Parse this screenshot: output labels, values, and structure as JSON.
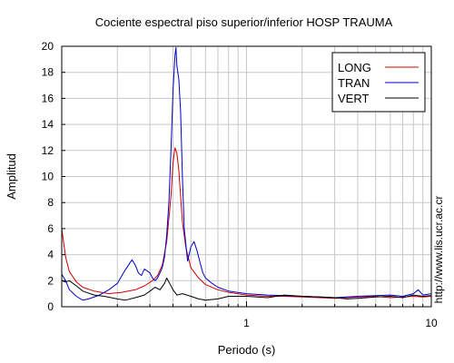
{
  "chart_data": {
    "type": "line",
    "title": "Cociente espectral piso superior/inferior  HOSP TRAUMA",
    "xlabel": "Periodo (s)",
    "ylabel": "Amplitud",
    "x_scale": "log",
    "xlim": [
      0.1,
      10
    ],
    "ylim": [
      0,
      20
    ],
    "x_ticks": [
      1,
      10
    ],
    "x_tick_labels": [
      "1",
      "10"
    ],
    "y_ticks": [
      0,
      2,
      4,
      6,
      8,
      10,
      12,
      14,
      16,
      18,
      20
    ],
    "y_tick_labels": [
      "0",
      "2",
      "4",
      "6",
      "8",
      "10",
      "12",
      "14",
      "16",
      "18",
      "20"
    ],
    "grid": true,
    "legend_position": "top-right",
    "side_note": "http://www.lis.ucr.ac.cr",
    "series": [
      {
        "name": "LONG",
        "color": "#d00000",
        "x": [
          0.1,
          0.105,
          0.11,
          0.12,
          0.13,
          0.15,
          0.18,
          0.21,
          0.25,
          0.28,
          0.31,
          0.33,
          0.35,
          0.37,
          0.39,
          0.4,
          0.41,
          0.42,
          0.43,
          0.44,
          0.45,
          0.47,
          0.5,
          0.55,
          0.6,
          0.7,
          0.8,
          1.0,
          1.3,
          1.6,
          2.0,
          2.5,
          3.0,
          3.5,
          4.0,
          5.0,
          6.0,
          7.0,
          8.0,
          9.0,
          10.0
        ],
        "y": [
          6.0,
          3.8,
          2.7,
          1.9,
          1.5,
          1.2,
          1.0,
          1.1,
          1.3,
          1.6,
          2.0,
          2.4,
          3.2,
          5.0,
          8.5,
          11.0,
          12.2,
          11.8,
          10.5,
          8.5,
          6.5,
          4.5,
          3.0,
          2.2,
          1.7,
          1.3,
          1.1,
          0.9,
          0.8,
          0.8,
          0.75,
          0.7,
          0.65,
          0.7,
          0.75,
          0.8,
          0.7,
          0.75,
          0.8,
          0.75,
          0.8
        ]
      },
      {
        "name": "TRAN",
        "color": "#0000cc",
        "x": [
          0.1,
          0.105,
          0.11,
          0.12,
          0.13,
          0.14,
          0.16,
          0.18,
          0.2,
          0.22,
          0.24,
          0.25,
          0.26,
          0.27,
          0.28,
          0.3,
          0.31,
          0.32,
          0.33,
          0.34,
          0.35,
          0.36,
          0.37,
          0.38,
          0.39,
          0.4,
          0.41,
          0.415,
          0.42,
          0.43,
          0.44,
          0.45,
          0.46,
          0.48,
          0.5,
          0.52,
          0.54,
          0.56,
          0.58,
          0.6,
          0.65,
          0.7,
          0.8,
          1.0,
          1.3,
          1.6,
          2.0,
          2.5,
          3.0,
          3.5,
          4.0,
          5.0,
          6.0,
          7.0,
          8.0,
          8.5,
          9.0,
          10.0
        ],
        "y": [
          2.5,
          2.0,
          1.3,
          0.8,
          0.5,
          0.6,
          0.9,
          1.3,
          1.8,
          2.8,
          3.6,
          3.2,
          2.6,
          2.4,
          2.9,
          2.6,
          2.2,
          2.0,
          2.2,
          2.6,
          3.0,
          3.8,
          5.5,
          8.0,
          12.0,
          16.5,
          19.3,
          19.9,
          18.5,
          17.5,
          15.0,
          10.0,
          6.0,
          3.5,
          4.6,
          5.0,
          4.3,
          3.4,
          2.6,
          2.2,
          1.8,
          1.5,
          1.2,
          1.0,
          0.9,
          0.85,
          0.8,
          0.75,
          0.7,
          0.75,
          0.8,
          0.85,
          0.9,
          0.8,
          1.0,
          1.3,
          0.9,
          1.0
        ]
      },
      {
        "name": "VERT",
        "color": "#000000",
        "x": [
          0.1,
          0.105,
          0.11,
          0.12,
          0.13,
          0.15,
          0.17,
          0.2,
          0.22,
          0.25,
          0.28,
          0.3,
          0.32,
          0.34,
          0.36,
          0.37,
          0.38,
          0.4,
          0.42,
          0.45,
          0.5,
          0.55,
          0.6,
          0.7,
          0.8,
          1.0,
          1.3,
          1.6,
          2.0,
          2.5,
          3.0,
          3.5,
          4.0,
          5.0,
          6.0,
          7.0,
          8.0,
          9.0,
          10.0
        ],
        "y": [
          2.0,
          1.9,
          2.0,
          1.6,
          1.2,
          0.9,
          0.8,
          0.6,
          0.5,
          0.7,
          0.9,
          1.2,
          1.5,
          1.3,
          1.8,
          2.2,
          1.9,
          1.3,
          0.9,
          1.0,
          0.8,
          0.6,
          0.5,
          0.6,
          0.8,
          0.8,
          0.7,
          0.9,
          0.8,
          0.75,
          0.7,
          0.6,
          0.65,
          0.75,
          0.8,
          0.7,
          0.9,
          0.8,
          0.85
        ]
      }
    ]
  }
}
